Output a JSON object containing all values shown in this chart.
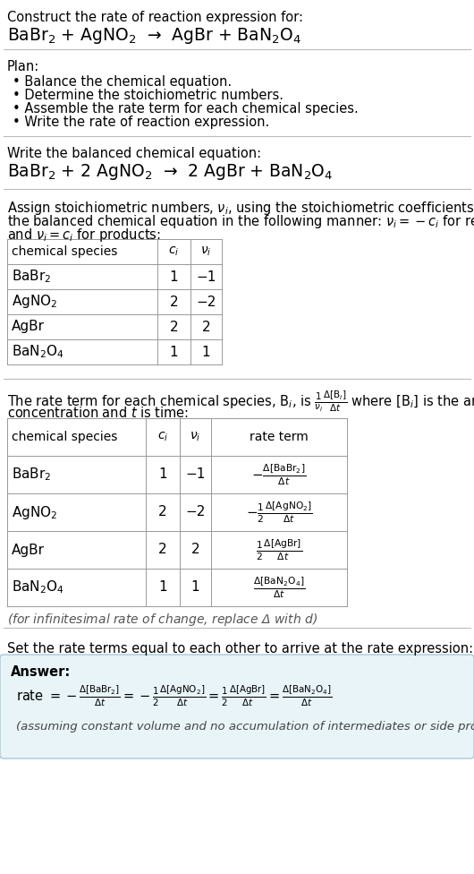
{
  "bg_color": "#ffffff",
  "text_color": "#000000",
  "answer_box_color": "#e8f4f8",
  "answer_box_edge": "#a8c8d8",
  "sections": {
    "title": "Construct the rate of reaction expression for:",
    "rxn_unbalanced": "BaBr$_2$ + AgNO$_2$  →  AgBr + BaN$_2$O$_4$",
    "plan_header": "Plan:",
    "plan_items": [
      "• Balance the chemical equation.",
      "• Determine the stoichiometric numbers.",
      "• Assemble the rate term for each chemical species.",
      "• Write the rate of reaction expression."
    ],
    "balanced_header": "Write the balanced chemical equation:",
    "rxn_balanced": "BaBr$_2$ + 2 AgNO$_2$  →  2 AgBr + BaN$_2$O$_4$",
    "stoich_line1": "Assign stoichiometric numbers, $\\nu_i$, using the stoichiometric coefficients, $c_i$, from",
    "stoich_line2": "the balanced chemical equation in the following manner: $\\nu_i = -c_i$ for reactants",
    "stoich_line3": "and $\\nu_i = c_i$ for products:",
    "table1_col_labels": [
      "chemical species",
      "$c_i$",
      "$\\nu_i$"
    ],
    "table1_rows": [
      [
        "BaBr$_2$",
        "1",
        "−1"
      ],
      [
        "AgNO$_2$",
        "2",
        "−2"
      ],
      [
        "AgBr",
        "2",
        "2"
      ],
      [
        "BaN$_2$O$_4$",
        "1",
        "1"
      ]
    ],
    "rate_line1": "The rate term for each chemical species, B$_i$, is $\\frac{1}{\\nu_i}\\frac{\\Delta[\\mathrm{B}_i]}{\\Delta t}$ where [B$_i$] is the amount",
    "rate_line2": "concentration and $t$ is time:",
    "table2_col_labels": [
      "chemical species",
      "$c_i$",
      "$\\nu_i$",
      "rate term"
    ],
    "table2_rows": [
      [
        "BaBr$_2$",
        "1",
        "−1",
        "$-\\frac{\\Delta[\\mathrm{BaBr_2}]}{\\Delta t}$"
      ],
      [
        "AgNO$_2$",
        "2",
        "−2",
        "$-\\frac{1}{2}\\frac{\\Delta[\\mathrm{AgNO_2}]}{\\Delta t}$"
      ],
      [
        "AgBr",
        "2",
        "2",
        "$\\frac{1}{2}\\frac{\\Delta[\\mathrm{AgBr}]}{\\Delta t}$"
      ],
      [
        "BaN$_2$O$_4$",
        "1",
        "1",
        "$\\frac{\\Delta[\\mathrm{BaN_2O_4}]}{\\Delta t}$"
      ]
    ],
    "note_infinitesimal": "(for infinitesimal rate of change, replace Δ with $d$)",
    "set_equal_header": "Set the rate terms equal to each other to arrive at the rate expression:",
    "answer_label": "Answer:",
    "rate_expr_parts": [
      "rate $= -\\frac{\\Delta[\\mathrm{BaBr_2}]}{\\Delta t}$",
      "$= -\\frac{1}{2}\\frac{\\Delta[\\mathrm{AgNO_2}]}{\\Delta t}$",
      "$= \\frac{1}{2}\\frac{\\Delta[\\mathrm{AgBr}]}{\\Delta t}$",
      "$= \\frac{\\Delta[\\mathrm{BaN_2O_4}]}{\\Delta t}$"
    ],
    "assuming_note": "(assuming constant volume and no accumulation of intermediates or side products)"
  }
}
